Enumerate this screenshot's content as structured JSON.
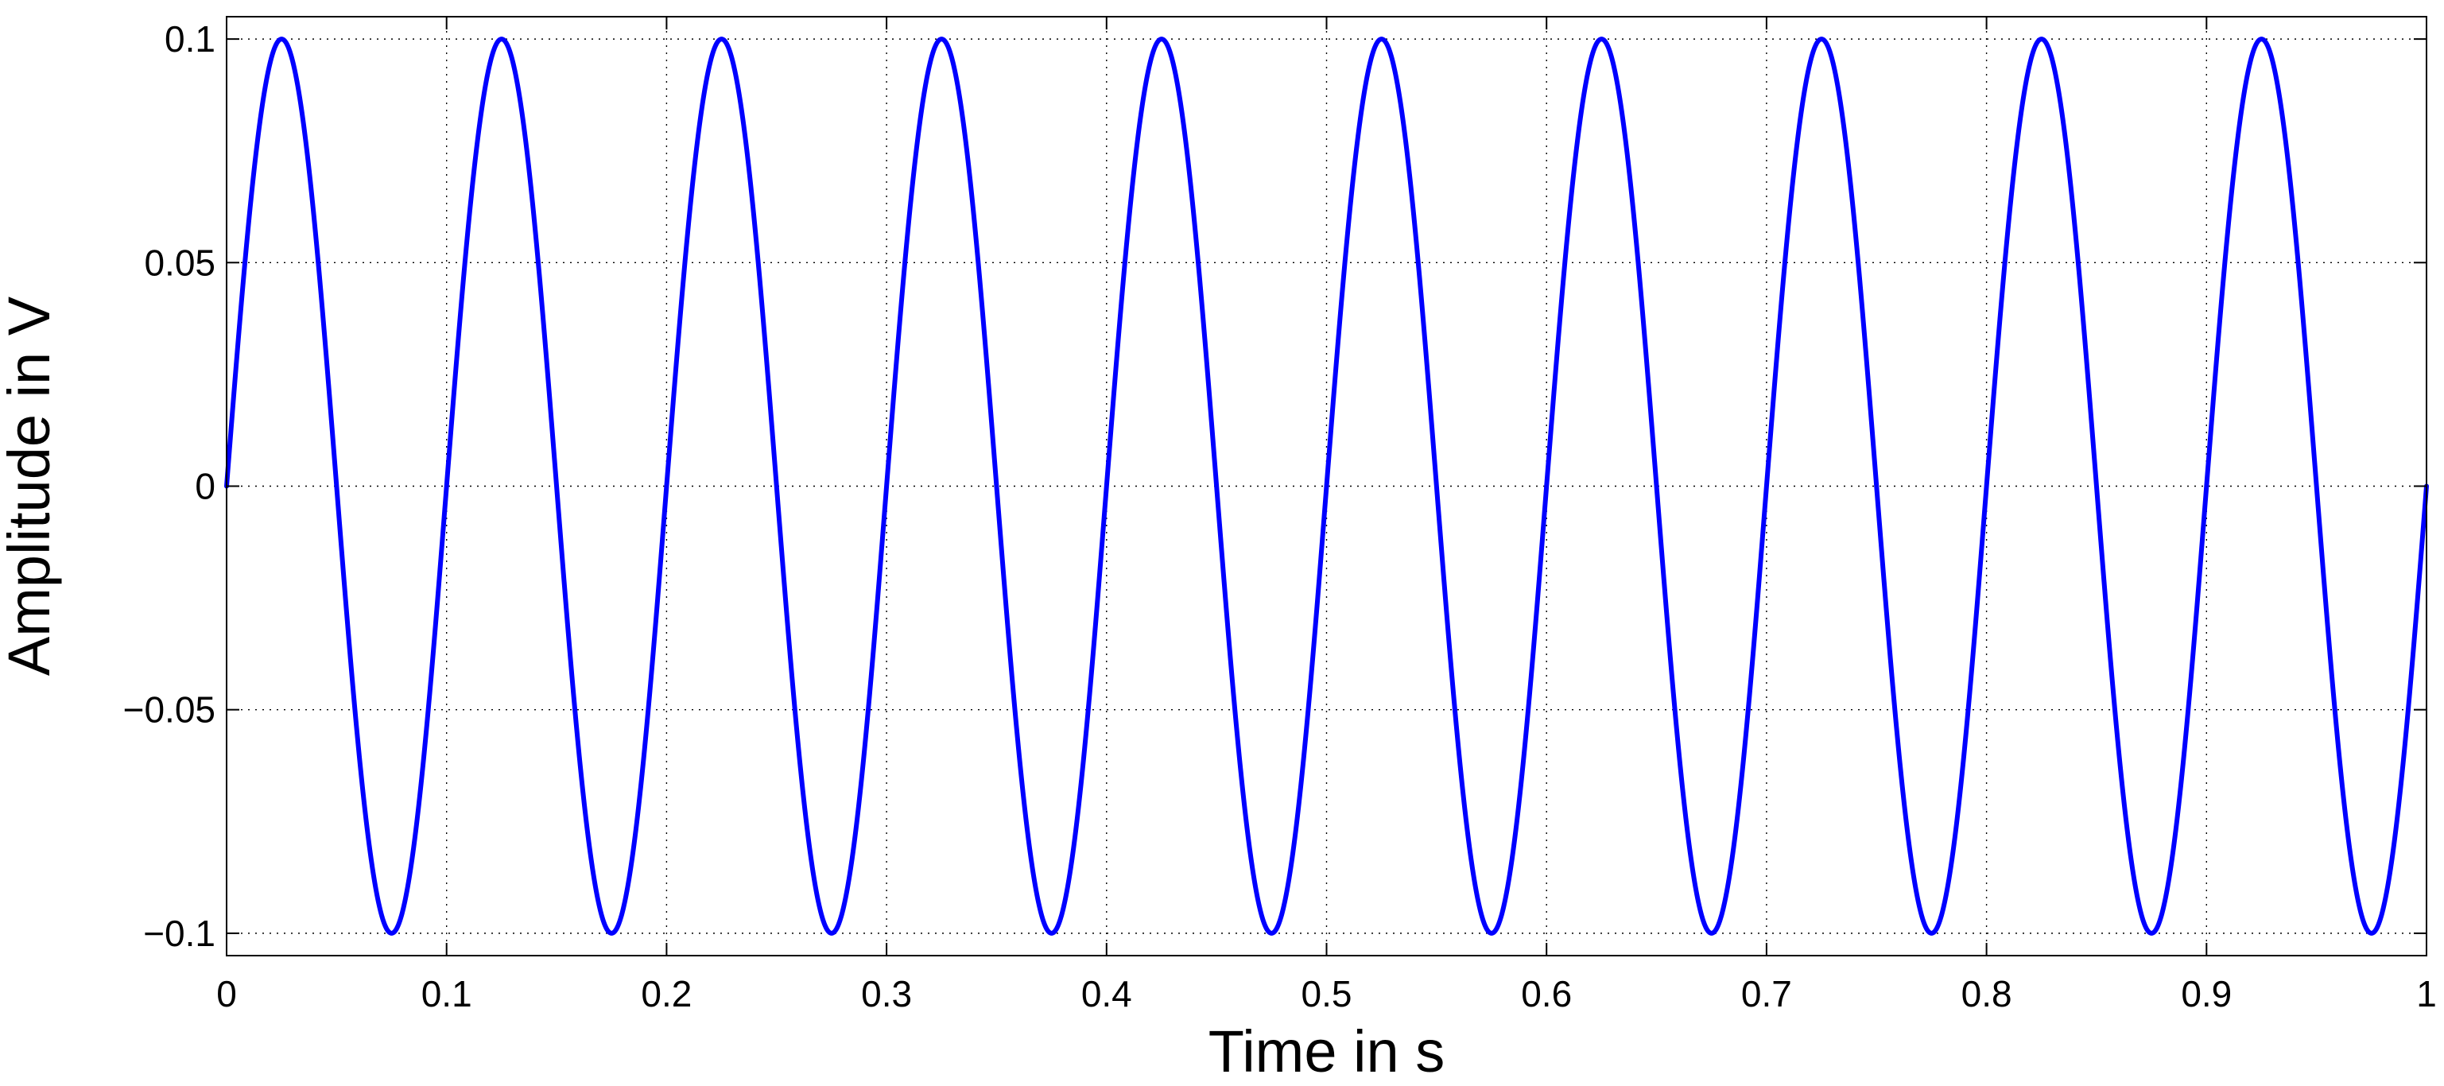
{
  "chart_data": {
    "type": "line",
    "title": "",
    "xlabel": "Time in s",
    "ylabel": "Amplitude in V",
    "xlim": [
      0,
      1
    ],
    "ylim": [
      -0.105,
      0.105
    ],
    "x_ticks": [
      0,
      0.1,
      0.2,
      0.3,
      0.4,
      0.5,
      0.6,
      0.7,
      0.8,
      0.9,
      1
    ],
    "x_tick_labels": [
      "0",
      "0.1",
      "0.2",
      "0.3",
      "0.4",
      "0.5",
      "0.6",
      "0.7",
      "0.8",
      "0.9",
      "1"
    ],
    "y_ticks": [
      -0.1,
      -0.05,
      0,
      0.05,
      0.1
    ],
    "y_tick_labels": [
      "−0.1",
      "−0.05",
      "0",
      "0.05",
      "0.1"
    ],
    "grid": true,
    "grid_style": "dotted",
    "series": [
      {
        "color": "#0000ff",
        "function": "sine",
        "amplitude": 0.1,
        "frequency_hz": 10,
        "phase": 0,
        "x_start": 0,
        "x_end": 1
      }
    ]
  }
}
